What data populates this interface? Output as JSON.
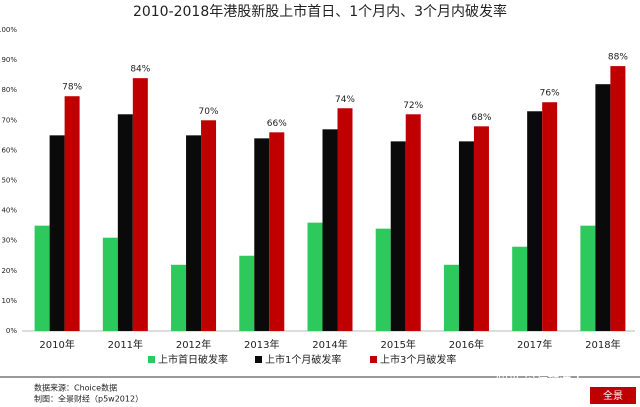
{
  "chart_data": {
    "type": "bar",
    "title": "2010-2018年港股新股上市首日、1个月内、3个月内破发率",
    "categories": [
      "2010年",
      "2011年",
      "2012年",
      "2013年",
      "2014年",
      "2015年",
      "2016年",
      "2017年",
      "2018年"
    ],
    "series": [
      {
        "name": "上市首日破发率",
        "color": "#2ec95c",
        "values": [
          35,
          31,
          22,
          25,
          36,
          34,
          22,
          28,
          35
        ]
      },
      {
        "name": "上市1个月破发率",
        "color": "#0a0a0a",
        "values": [
          65,
          72,
          65,
          64,
          67,
          63,
          63,
          73,
          82
        ]
      },
      {
        "name": "上市3个月破发率",
        "color": "#c00000",
        "values": [
          78,
          84,
          70,
          66,
          74,
          72,
          68,
          76,
          88
        ],
        "value_labels": [
          "78%",
          "84%",
          "70%",
          "66%",
          "74%",
          "72%",
          "68%",
          "76%",
          "88%"
        ]
      }
    ],
    "ylim": [
      0,
      100
    ],
    "yticks": [
      {
        "value": 0,
        "label": "0%"
      },
      {
        "value": 10,
        "label": "10%"
      },
      {
        "value": 20,
        "label": "20%"
      },
      {
        "value": 30,
        "label": "30%"
      },
      {
        "value": 40,
        "label": "40%"
      },
      {
        "value": 50,
        "label": "50%"
      },
      {
        "value": 60,
        "label": "60%"
      },
      {
        "value": 70,
        "label": "70%"
      },
      {
        "value": 80,
        "label": "80%"
      },
      {
        "value": 90,
        "label": "90%"
      },
      {
        "value": 100,
        "label": "100%"
      }
    ],
    "grid": false,
    "source": "数据来源：Choice数据",
    "credit": "制图：全景财经（p5w2012）",
    "watermark": "知乎 @荷塘渔人",
    "logo": "全景"
  }
}
